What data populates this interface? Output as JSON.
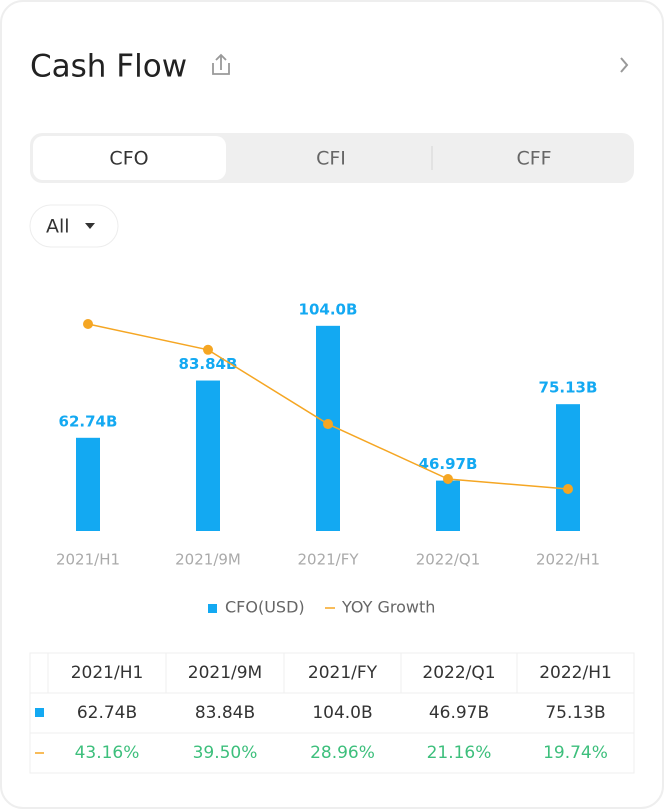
{
  "header": {
    "title": "Cash Flow"
  },
  "tabs": [
    "CFO",
    "CFI",
    "CFF"
  ],
  "filter": "All",
  "chart_data": {
    "type": "bar",
    "categories": [
      "2021/H1",
      "2021/9M",
      "2021/FY",
      "2022/Q1",
      "2022/H1"
    ],
    "series": [
      {
        "name": "CFO(USD)",
        "color": "#13a9f2",
        "values": [
          62.74,
          83.84,
          104.0,
          46.97,
          75.13
        ],
        "value_labels": [
          "62.74B",
          "83.84B",
          "104.0B",
          "46.97B",
          "75.13B"
        ]
      },
      {
        "name": "YOY Growth",
        "type": "line",
        "axis": "y2",
        "color": "#f5a623",
        "values": [
          43.16,
          39.5,
          28.96,
          21.16,
          19.74
        ]
      }
    ],
    "ylim": [
      28.4,
      117.2
    ],
    "y2lim": [
      13.78,
      47.99
    ]
  },
  "table": {
    "columns": [
      "2021/H1",
      "2021/9M",
      "2021/FY",
      "2022/Q1",
      "2022/H1"
    ],
    "rows": [
      [
        "62.74B",
        "83.84B",
        "104.0B",
        "46.97B",
        "75.13B"
      ],
      [
        "43.16%",
        "39.50%",
        "28.96%",
        "21.16%",
        "19.74%"
      ]
    ]
  }
}
